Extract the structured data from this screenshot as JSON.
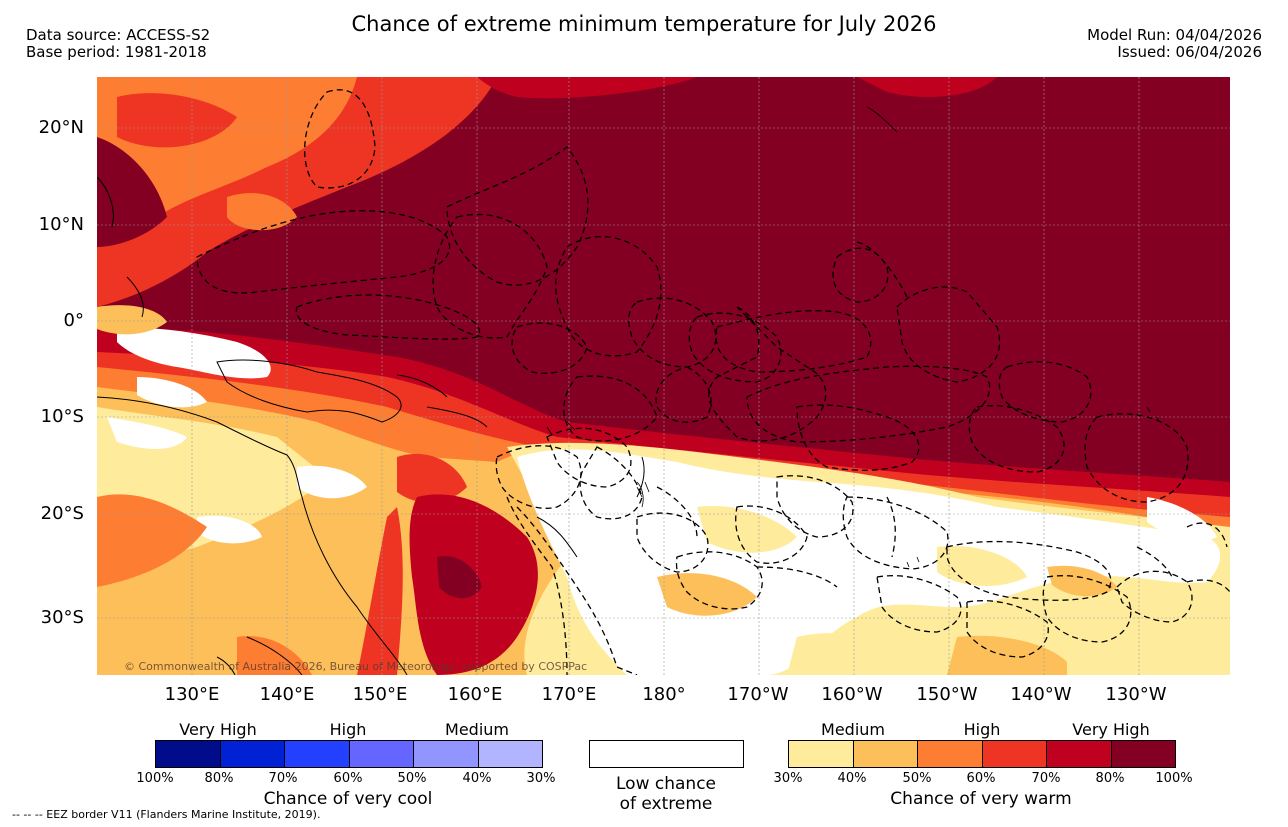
{
  "title": "Chance of extreme minimum temperature for July 2026",
  "source": {
    "line1": "Data source: ACCESS-S2",
    "line2": "Base period: 1981-2018"
  },
  "model": {
    "run": "Model Run: 04/04/2026",
    "issued": "Issued: 06/04/2026"
  },
  "lat_labels": [
    "20°N",
    "10°N",
    "0°",
    "10°S",
    "20°S",
    "30°S"
  ],
  "lon_labels": [
    "130°E",
    "140°E",
    "150°E",
    "160°E",
    "170°E",
    "180°",
    "170°W",
    "160°W",
    "150°W",
    "140°W",
    "130°W"
  ],
  "copyright": "© Commonwealth of Australia 2026, Bureau of Meteorology, supported by COSPPac",
  "legend": {
    "cool": {
      "categories": [
        "Very High",
        "High",
        "Medium"
      ],
      "percent_labels": [
        "100%",
        "80%",
        "70%",
        "60%",
        "50%",
        "40%",
        "30%"
      ],
      "colors": [
        "#000c8a",
        "#0022d4",
        "#2340ff",
        "#6466ff",
        "#9294ff",
        "#b3b4ff"
      ],
      "title": "Chance of very cool"
    },
    "low": {
      "line1": "Low chance",
      "line2": "of extreme",
      "color": "#ffffff"
    },
    "warm": {
      "categories": [
        "Medium",
        "High",
        "Very High"
      ],
      "percent_labels": [
        "30%",
        "40%",
        "50%",
        "60%",
        "70%",
        "80%",
        "100%"
      ],
      "colors": [
        "#feec9c",
        "#fdbf5a",
        "#fd7d32",
        "#ee3523",
        "#c0001f",
        "#830022"
      ],
      "title": "Chance of very warm"
    }
  },
  "eez_note": "--  --  -- EEZ border V11 (Flanders Marine Institute, 2019)."
}
